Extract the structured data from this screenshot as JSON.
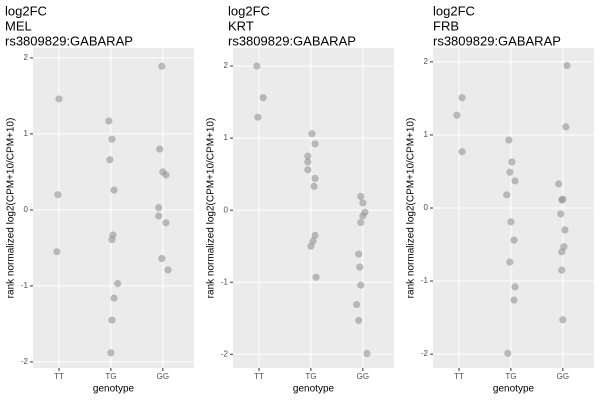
{
  "chart_data": [
    {
      "type": "scatter",
      "title": [
        "log2FC",
        "MEL",
        "rs3809829:GABARAP"
      ],
      "x_label": "genotype",
      "y_label": "rank normalized log2(CPM+10/CPM+10)",
      "xlim": [
        0.5,
        3.6
      ],
      "ylim": [
        -2.08,
        2.13
      ],
      "xticks": [
        {
          "value": 1,
          "label": "TT"
        },
        {
          "value": 2,
          "label": "TG"
        },
        {
          "value": 3,
          "label": "GG"
        }
      ],
      "yticks": [
        -2,
        -1,
        0,
        1,
        2
      ],
      "grid": true,
      "color": "#8c8c8c",
      "x": [
        1.0,
        0.98,
        0.96,
        1.96,
        2.02,
        1.98,
        2.06,
        2.04,
        2.02,
        2.13,
        2.06,
        2.02,
        2.0,
        2.98,
        2.94,
        3.0,
        3.06,
        2.92,
        2.92,
        3.06,
        2.98,
        3.1
      ],
      "values": [
        1.46,
        0.2,
        -0.55,
        1.17,
        0.93,
        0.66,
        0.26,
        -0.33,
        -0.39,
        -0.97,
        -1.16,
        -1.45,
        -1.88,
        1.89,
        0.8,
        0.5,
        0.46,
        0.03,
        -0.08,
        -0.17,
        -0.64,
        -0.79
      ]
    },
    {
      "type": "scatter",
      "title": [
        "log2FC",
        "KRT",
        "rs3809829:GABARAP"
      ],
      "x_label": "genotype",
      "y_label": "rank normalized log2(CPM+10/CPM+10)",
      "xlim": [
        0.5,
        3.6
      ],
      "ylim": [
        -2.19,
        2.25
      ],
      "xticks": [
        {
          "value": 1,
          "label": "TT"
        },
        {
          "value": 2,
          "label": "TG"
        },
        {
          "value": 3,
          "label": "GG"
        }
      ],
      "yticks": [
        -2,
        -1,
        0,
        1,
        2
      ],
      "grid": true,
      "color": "#8c8c8c",
      "x": [
        0.96,
        1.08,
        0.98,
        2.02,
        2.08,
        1.94,
        1.94,
        1.94,
        2.08,
        2.06,
        2.08,
        2.04,
        2.0,
        2.1,
        2.96,
        3.0,
        3.04,
        3.0,
        2.96,
        2.92,
        2.94,
        2.96,
        2.88,
        2.92,
        3.08
      ],
      "values": [
        2.0,
        1.56,
        1.29,
        1.06,
        0.92,
        0.75,
        0.67,
        0.56,
        0.44,
        0.33,
        -0.35,
        -0.43,
        -0.5,
        -0.93,
        0.19,
        0.1,
        -0.03,
        -0.08,
        -0.17,
        -0.61,
        -0.79,
        -1.04,
        -1.31,
        -1.53,
        -1.99
      ]
    },
    {
      "type": "scatter",
      "title": [
        "log2FC",
        "FRB",
        "rs3809829:GABARAP"
      ],
      "x_label": "genotype",
      "y_label": "rank normalized log2(CPM+10/CPM+10)",
      "xlim": [
        0.5,
        3.6
      ],
      "ylim": [
        -2.19,
        2.19
      ],
      "xticks": [
        {
          "value": 1,
          "label": "TT"
        },
        {
          "value": 2,
          "label": "TG"
        },
        {
          "value": 3,
          "label": "GG"
        }
      ],
      "yticks": [
        -2,
        -1,
        0,
        1,
        2
      ],
      "grid": true,
      "color": "#8c8c8c",
      "x": [
        1.06,
        0.96,
        1.06,
        1.96,
        2.02,
        1.98,
        2.08,
        1.92,
        2.0,
        2.06,
        1.98,
        2.08,
        2.06,
        1.94,
        3.08,
        3.06,
        2.92,
        2.98,
        3.0,
        2.96,
        3.04,
        3.02,
        2.98,
        2.98,
        3.0
      ],
      "values": [
        1.51,
        1.27,
        0.77,
        0.93,
        0.63,
        0.49,
        0.37,
        0.18,
        -0.19,
        -0.44,
        -0.74,
        -1.08,
        -1.26,
        -1.99,
        1.95,
        1.11,
        0.33,
        0.11,
        0.12,
        -0.08,
        -0.3,
        -0.53,
        -0.6,
        -0.85,
        -1.53
      ]
    }
  ]
}
